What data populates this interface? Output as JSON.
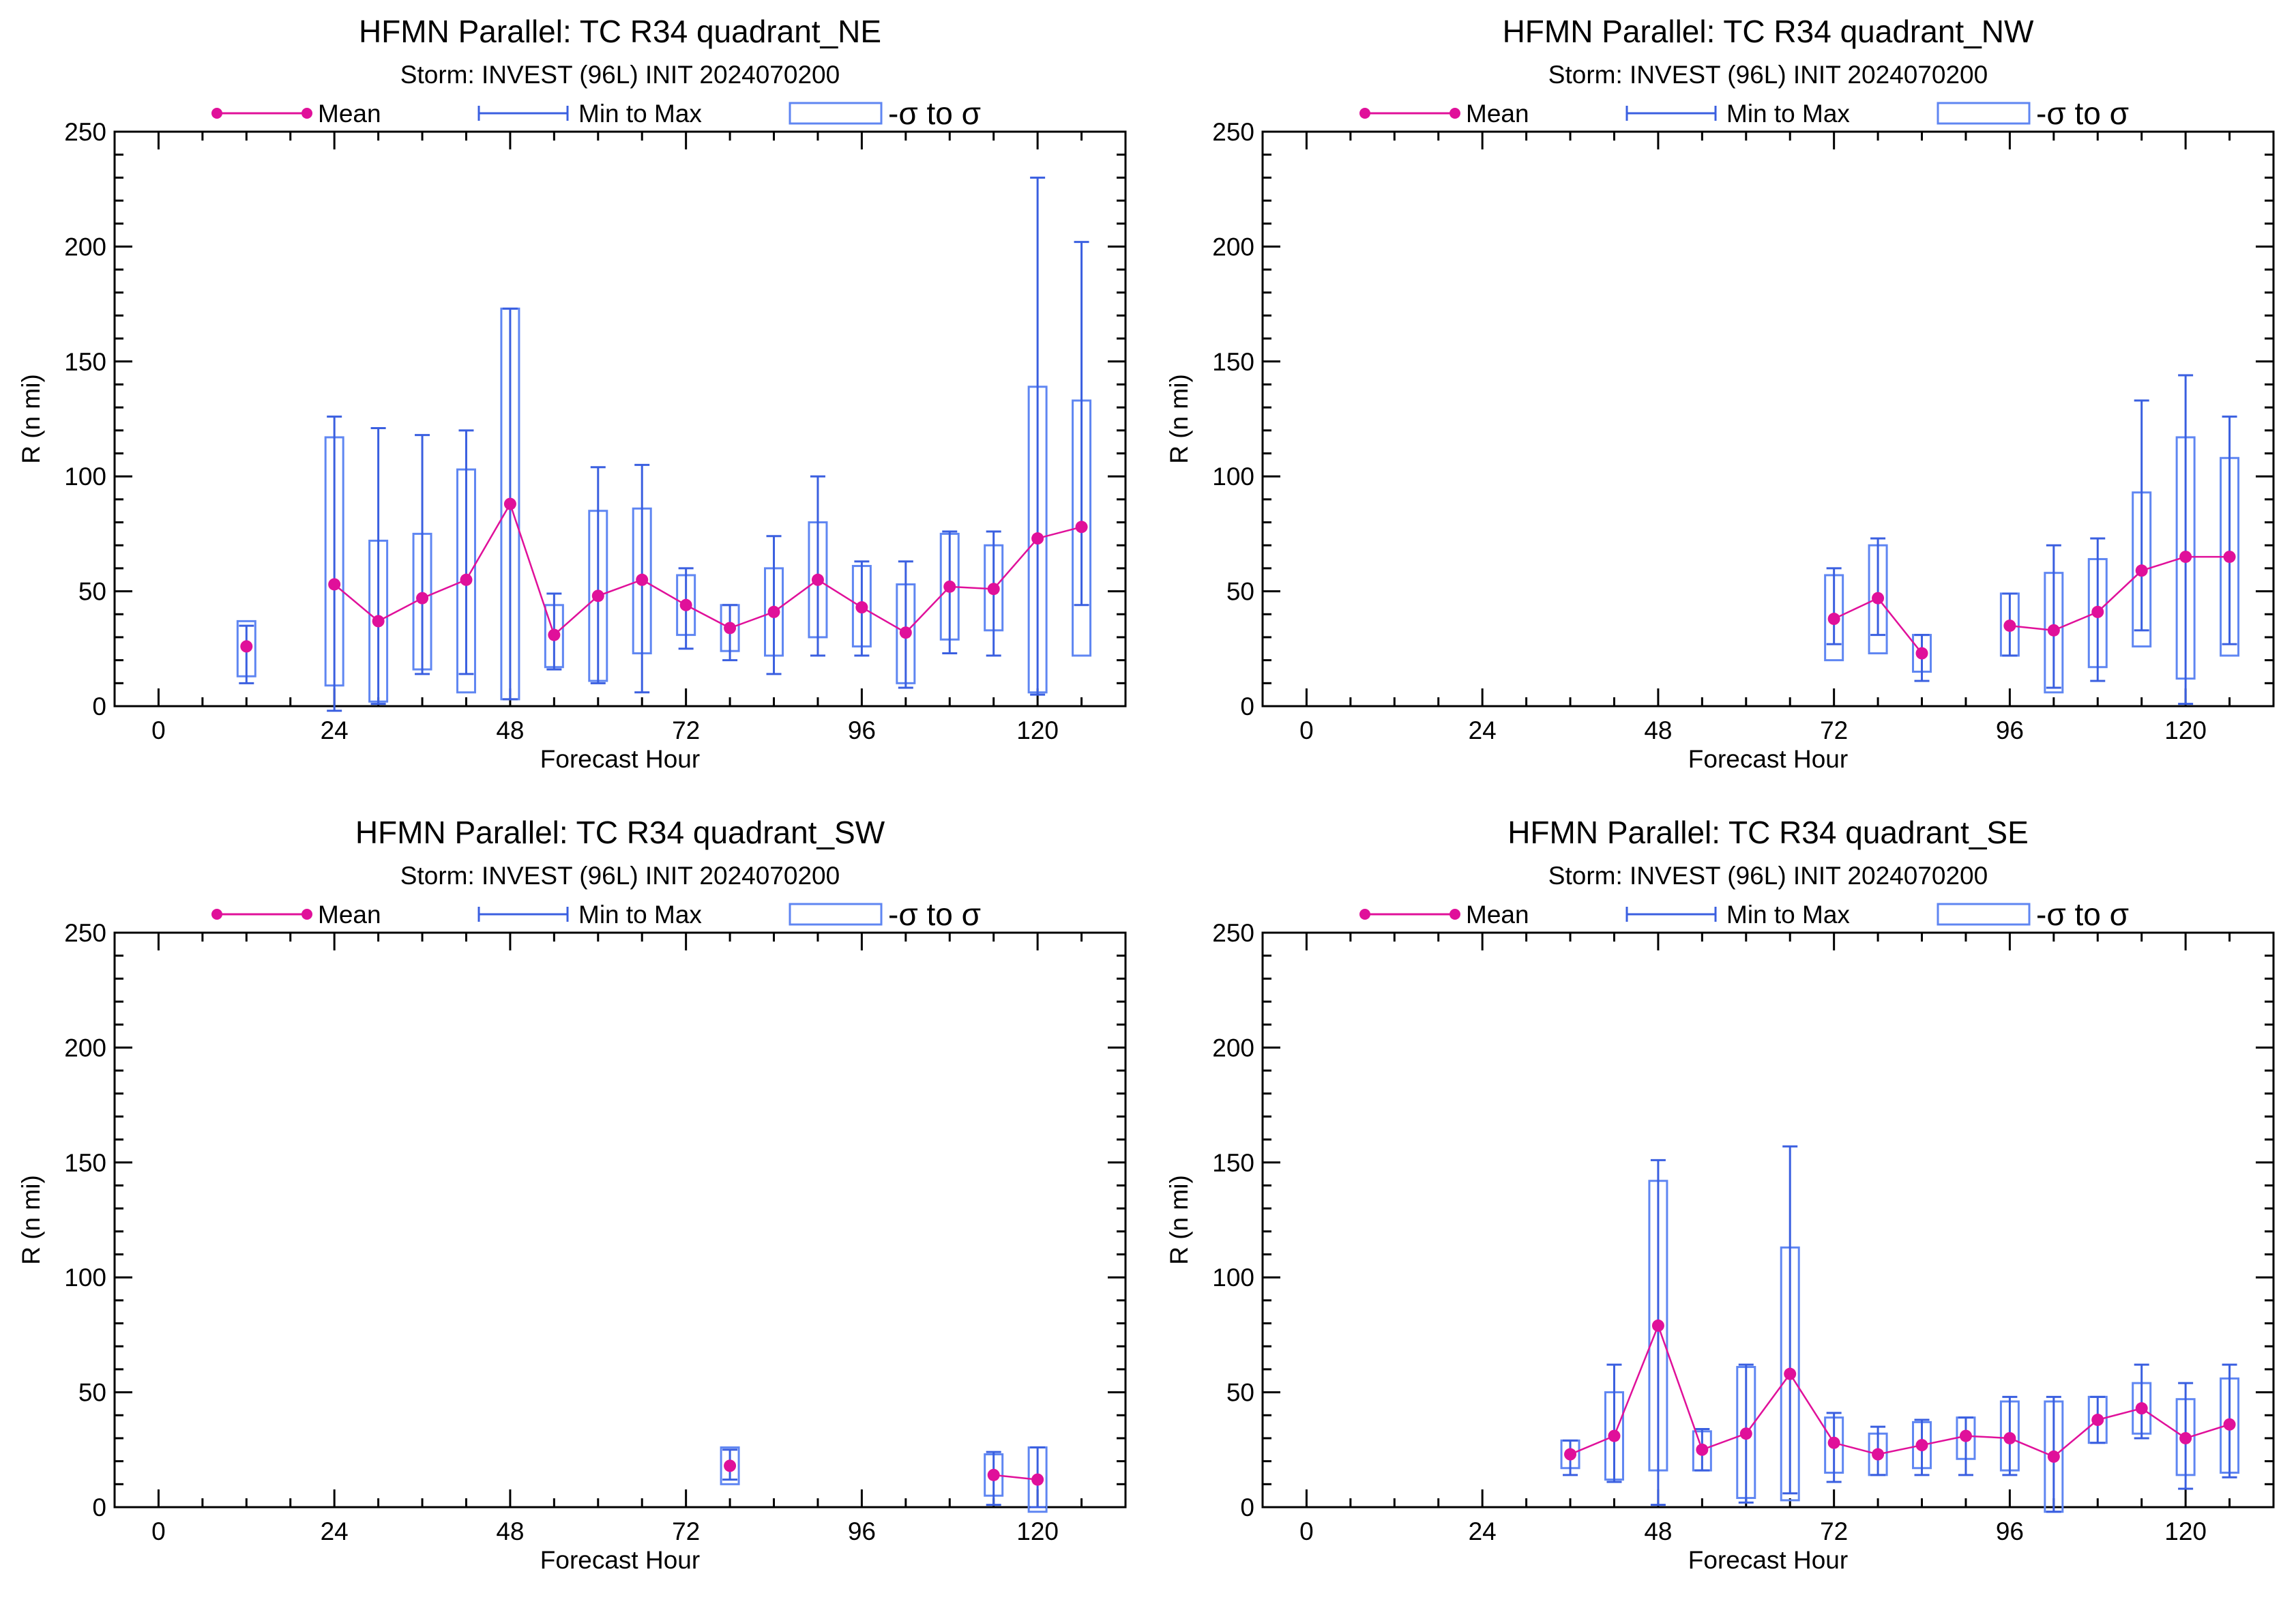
{
  "colors": {
    "mean": "#e0109a",
    "minmax": "#3a5fe0",
    "sigma": "#5f86f2",
    "axis": "#000000"
  },
  "chart_data": [
    {
      "type": "box",
      "title": "HFMN Parallel: TC  R34 quadrant_NE",
      "subtitle": "Storm: INVEST (96L) INIT 2024070200",
      "xlabel": "Forecast Hour",
      "ylabel": "R (n mi)",
      "xlim": [
        -6,
        132
      ],
      "ylim": [
        0,
        250
      ],
      "xticks": [
        0,
        24,
        48,
        72,
        96,
        120
      ],
      "yticks": [
        0,
        50,
        100,
        150,
        200,
        250
      ],
      "legend": [
        "Mean",
        "Min to Max",
        "-σ to σ"
      ],
      "legend_position": "top",
      "points": [
        {
          "x": 12,
          "mean": 26,
          "min": 10,
          "max": 35,
          "sd_lo": 13,
          "sd_hi": 37
        },
        {
          "x": 24,
          "mean": 53,
          "min": -2,
          "max": 126,
          "sd_lo": 9,
          "sd_hi": 117
        },
        {
          "x": 30,
          "mean": 37,
          "min": 1,
          "max": 121,
          "sd_lo": 2,
          "sd_hi": 72
        },
        {
          "x": 36,
          "mean": 47,
          "min": 14,
          "max": 118,
          "sd_lo": 16,
          "sd_hi": 75
        },
        {
          "x": 42,
          "mean": 55,
          "min": 14,
          "max": 120,
          "sd_lo": 6,
          "sd_hi": 103
        },
        {
          "x": 48,
          "mean": 88,
          "min": 3,
          "max": 173,
          "sd_lo": 3,
          "sd_hi": 173
        },
        {
          "x": 54,
          "mean": 31,
          "min": 16,
          "max": 49,
          "sd_lo": 17,
          "sd_hi": 44
        },
        {
          "x": 60,
          "mean": 48,
          "min": 10,
          "max": 104,
          "sd_lo": 11,
          "sd_hi": 85
        },
        {
          "x": 66,
          "mean": 55,
          "min": 6,
          "max": 105,
          "sd_lo": 23,
          "sd_hi": 86
        },
        {
          "x": 72,
          "mean": 44,
          "min": 25,
          "max": 60,
          "sd_lo": 31,
          "sd_hi": 57
        },
        {
          "x": 78,
          "mean": 34,
          "min": 20,
          "max": 44,
          "sd_lo": 24,
          "sd_hi": 44
        },
        {
          "x": 84,
          "mean": 41,
          "min": 14,
          "max": 74,
          "sd_lo": 22,
          "sd_hi": 60
        },
        {
          "x": 90,
          "mean": 55,
          "min": 22,
          "max": 100,
          "sd_lo": 30,
          "sd_hi": 80
        },
        {
          "x": 96,
          "mean": 43,
          "min": 22,
          "max": 63,
          "sd_lo": 26,
          "sd_hi": 61
        },
        {
          "x": 102,
          "mean": 32,
          "min": 8,
          "max": 63,
          "sd_lo": 10,
          "sd_hi": 53
        },
        {
          "x": 108,
          "mean": 52,
          "min": 23,
          "max": 76,
          "sd_lo": 29,
          "sd_hi": 75
        },
        {
          "x": 114,
          "mean": 51,
          "min": 22,
          "max": 76,
          "sd_lo": 33,
          "sd_hi": 70
        },
        {
          "x": 120,
          "mean": 73,
          "min": 5,
          "max": 230,
          "sd_lo": 6,
          "sd_hi": 139
        },
        {
          "x": 126,
          "mean": 78,
          "min": 44,
          "max": 202,
          "sd_lo": 22,
          "sd_hi": 133
        }
      ]
    },
    {
      "type": "box",
      "title": "HFMN Parallel: TC  R34 quadrant_NW",
      "subtitle": "Storm: INVEST (96L) INIT 2024070200",
      "xlabel": "Forecast Hour",
      "ylabel": "R (n mi)",
      "xlim": [
        -6,
        132
      ],
      "ylim": [
        0,
        250
      ],
      "xticks": [
        0,
        24,
        48,
        72,
        96,
        120
      ],
      "yticks": [
        0,
        50,
        100,
        150,
        200,
        250
      ],
      "legend": [
        "Mean",
        "Min to Max",
        "-σ to σ"
      ],
      "legend_position": "top",
      "points": [
        {
          "x": 72,
          "mean": 38,
          "min": 27,
          "max": 60,
          "sd_lo": 20,
          "sd_hi": 57
        },
        {
          "x": 78,
          "mean": 47,
          "min": 31,
          "max": 73,
          "sd_lo": 23,
          "sd_hi": 70
        },
        {
          "x": 84,
          "mean": 23,
          "min": 11,
          "max": 31,
          "sd_lo": 15,
          "sd_hi": 31
        },
        {
          "x": 96,
          "mean": 35,
          "min": 22,
          "max": 49,
          "sd_lo": 22,
          "sd_hi": 49
        },
        {
          "x": 102,
          "mean": 33,
          "min": 8,
          "max": 70,
          "sd_lo": 6,
          "sd_hi": 58
        },
        {
          "x": 108,
          "mean": 41,
          "min": 11,
          "max": 73,
          "sd_lo": 17,
          "sd_hi": 64
        },
        {
          "x": 114,
          "mean": 59,
          "min": 33,
          "max": 133,
          "sd_lo": 26,
          "sd_hi": 93
        },
        {
          "x": 120,
          "mean": 65,
          "min": 1,
          "max": 144,
          "sd_lo": 12,
          "sd_hi": 117
        },
        {
          "x": 126,
          "mean": 65,
          "min": 27,
          "max": 126,
          "sd_lo": 22,
          "sd_hi": 108
        }
      ]
    },
    {
      "type": "box",
      "title": "HFMN Parallel: TC  R34 quadrant_SW",
      "subtitle": "Storm: INVEST (96L) INIT 2024070200",
      "xlabel": "Forecast Hour",
      "ylabel": "R (n mi)",
      "xlim": [
        -6,
        132
      ],
      "ylim": [
        0,
        250
      ],
      "xticks": [
        0,
        24,
        48,
        72,
        96,
        120
      ],
      "yticks": [
        0,
        50,
        100,
        150,
        200,
        250
      ],
      "legend": [
        "Mean",
        "Min to Max",
        "-σ to σ"
      ],
      "legend_position": "top",
      "points": [
        {
          "x": 78,
          "mean": 18,
          "min": 12,
          "max": 25,
          "sd_lo": 10,
          "sd_hi": 26
        },
        {
          "x": 114,
          "mean": 14,
          "min": 1,
          "max": 24,
          "sd_lo": 5,
          "sd_hi": 23
        },
        {
          "x": 120,
          "mean": 12,
          "min": 0,
          "max": 26,
          "sd_lo": -2,
          "sd_hi": 26
        }
      ]
    },
    {
      "type": "box",
      "title": "HFMN Parallel: TC  R34 quadrant_SE",
      "subtitle": "Storm: INVEST (96L) INIT 2024070200",
      "xlabel": "Forecast Hour",
      "ylabel": "R (n mi)",
      "xlim": [
        -6,
        132
      ],
      "ylim": [
        0,
        250
      ],
      "xticks": [
        0,
        24,
        48,
        72,
        96,
        120
      ],
      "yticks": [
        0,
        50,
        100,
        150,
        200,
        250
      ],
      "legend": [
        "Mean",
        "Min to Max",
        "-σ to σ"
      ],
      "legend_position": "top",
      "points": [
        {
          "x": 36,
          "mean": 23,
          "min": 14,
          "max": 29,
          "sd_lo": 17,
          "sd_hi": 29
        },
        {
          "x": 42,
          "mean": 31,
          "min": 11,
          "max": 62,
          "sd_lo": 12,
          "sd_hi": 50
        },
        {
          "x": 48,
          "mean": 79,
          "min": 1,
          "max": 151,
          "sd_lo": 16,
          "sd_hi": 142
        },
        {
          "x": 54,
          "mean": 25,
          "min": 16,
          "max": 34,
          "sd_lo": 16,
          "sd_hi": 33
        },
        {
          "x": 60,
          "mean": 32,
          "min": 2,
          "max": 62,
          "sd_lo": 4,
          "sd_hi": 61
        },
        {
          "x": 66,
          "mean": 58,
          "min": 6,
          "max": 157,
          "sd_lo": 3,
          "sd_hi": 113
        },
        {
          "x": 72,
          "mean": 28,
          "min": 11,
          "max": 41,
          "sd_lo": 15,
          "sd_hi": 39
        },
        {
          "x": 78,
          "mean": 23,
          "min": 14,
          "max": 35,
          "sd_lo": 14,
          "sd_hi": 32
        },
        {
          "x": 84,
          "mean": 27,
          "min": 14,
          "max": 38,
          "sd_lo": 17,
          "sd_hi": 37
        },
        {
          "x": 90,
          "mean": 31,
          "min": 14,
          "max": 39,
          "sd_lo": 21,
          "sd_hi": 39
        },
        {
          "x": 96,
          "mean": 30,
          "min": 14,
          "max": 48,
          "sd_lo": 16,
          "sd_hi": 46
        },
        {
          "x": 102,
          "mean": 22,
          "min": -2,
          "max": 48,
          "sd_lo": -2,
          "sd_hi": 46
        },
        {
          "x": 108,
          "mean": 38,
          "min": 28,
          "max": 48,
          "sd_lo": 28,
          "sd_hi": 48
        },
        {
          "x": 114,
          "mean": 43,
          "min": 30,
          "max": 62,
          "sd_lo": 32,
          "sd_hi": 54
        },
        {
          "x": 120,
          "mean": 30,
          "min": 8,
          "max": 54,
          "sd_lo": 14,
          "sd_hi": 47
        },
        {
          "x": 126,
          "mean": 36,
          "min": 13,
          "max": 62,
          "sd_lo": 15,
          "sd_hi": 56
        }
      ]
    }
  ]
}
